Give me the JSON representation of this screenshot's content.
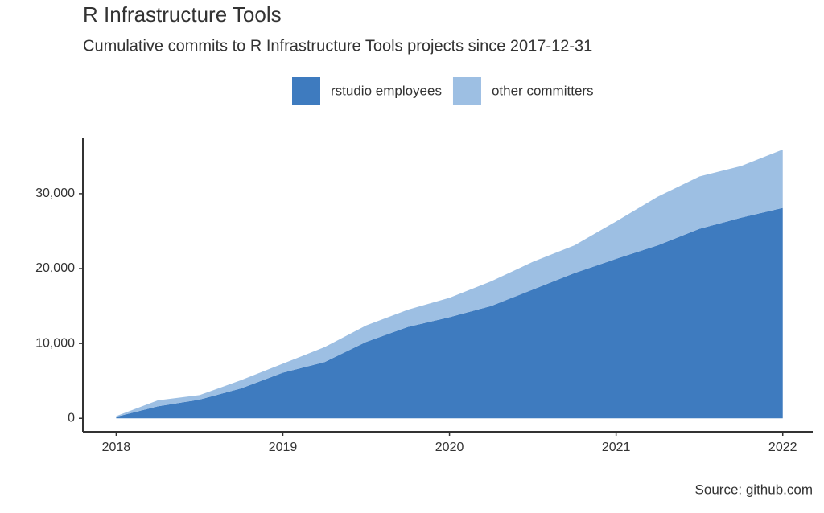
{
  "chart_data": {
    "type": "area",
    "title": "R Infrastructure Tools",
    "subtitle": "Cumulative commits to R Infrastructure Tools projects since 2017-12-31",
    "source": "Source: github.com",
    "stacked": true,
    "x": [
      2018,
      2018.25,
      2018.5,
      2018.75,
      2019,
      2019.25,
      2019.5,
      2019.75,
      2020,
      2020.25,
      2020.5,
      2020.75,
      2021,
      2021.25,
      2021.5,
      2021.75,
      2022
    ],
    "series": [
      {
        "name": "rstudio employees",
        "color": "#3e7bbf",
        "values": [
          200,
          1600,
          2500,
          4000,
          6100,
          7500,
          10200,
          12200,
          13500,
          15000,
          17200,
          19400,
          21300,
          23100,
          25300,
          26800,
          28100
        ]
      },
      {
        "name": "other committers",
        "color": "#9dbfe3",
        "values": [
          100,
          800,
          600,
          1100,
          1200,
          2000,
          2200,
          2300,
          2600,
          3300,
          3700,
          3700,
          5000,
          6500,
          7000,
          6900,
          7800
        ]
      }
    ],
    "xlim": [
      2017.8,
      2022.18
    ],
    "xticks": [
      2018,
      2019,
      2020,
      2021,
      2022
    ],
    "ylim": [
      -1800,
      37400
    ],
    "yticks": [
      0,
      {
        "value": 10000,
        "label": "10,000"
      },
      {
        "value": 20000,
        "label": "20,000"
      },
      {
        "value": 30000,
        "label": "30,000"
      }
    ],
    "grid": false,
    "legend": "top"
  }
}
